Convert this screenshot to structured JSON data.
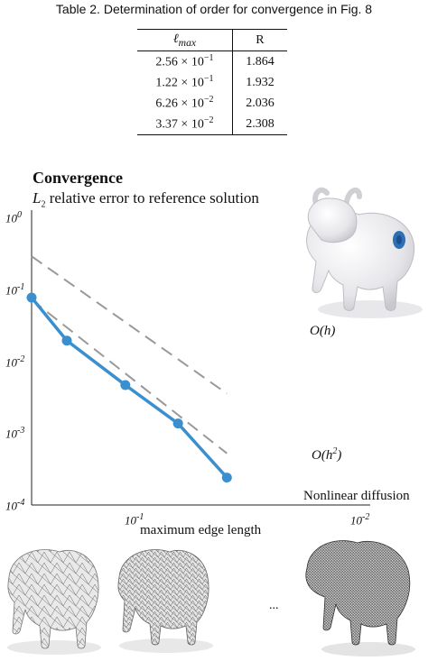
{
  "table": {
    "caption": "Table 2. Determination of order for convergence in Fig. 8",
    "headers": {
      "lmax": "ℓ",
      "lmax_sub": "max",
      "r": "R"
    },
    "rows": [
      {
        "mant": "2.56 × 10",
        "exp": "−1",
        "r": "1.864"
      },
      {
        "mant": "1.22 × 10",
        "exp": "−1",
        "r": "1.932"
      },
      {
        "mant": "6.26 × 10",
        "exp": "−2",
        "r": "2.036"
      },
      {
        "mant": "3.37 × 10",
        "exp": "−2",
        "r": "2.308"
      }
    ]
  },
  "figure": {
    "title": "Convergence",
    "subtitle_pre": "L",
    "subtitle_sub": "2",
    "subtitle_post": " relative error to reference solution",
    "ellipsis": "..."
  },
  "chart_data": {
    "type": "line",
    "title": "Convergence",
    "subtitle": "L2 relative error to reference solution",
    "xlabel": "maximum edge length",
    "ylabel": "",
    "x_scale": "log",
    "x_reversed": true,
    "y_scale": "log",
    "xlim": [
      0.4,
      0.01
    ],
    "ylim": [
      0.0001,
      1
    ],
    "x_ticks": [
      {
        "value": 0.1,
        "base": "10",
        "exp": "-1"
      },
      {
        "value": 0.01,
        "base": "10",
        "exp": "-2"
      }
    ],
    "y_ticks": [
      {
        "value": 1,
        "base": "10",
        "exp": "0"
      },
      {
        "value": 0.1,
        "base": "10",
        "exp": "-1"
      },
      {
        "value": 0.01,
        "base": "10",
        "exp": "-2"
      },
      {
        "value": 0.001,
        "base": "10",
        "exp": "-3"
      },
      {
        "value": 0.0001,
        "base": "10",
        "exp": "-4"
      }
    ],
    "series": [
      {
        "name": "Nonlinear diffusion",
        "color": "#3b8fcf",
        "x": [
          0.4,
          0.256,
          0.122,
          0.0626,
          0.0337
        ],
        "y": [
          0.075,
          0.019,
          0.0046,
          0.00135,
          0.00024
        ]
      }
    ],
    "reference_lines": [
      {
        "label": "O(h)",
        "label_main": "O(h)",
        "color": "#999999",
        "x": [
          0.4,
          0.0337
        ],
        "y": [
          0.28,
          0.0035
        ]
      },
      {
        "label": "O(h²)",
        "label_main": "O(h",
        "label_sup": "2",
        "label_end": ")",
        "color": "#999999",
        "x": [
          0.4,
          0.0337
        ],
        "y": [
          0.07,
          0.00052
        ]
      }
    ],
    "grid": false
  }
}
